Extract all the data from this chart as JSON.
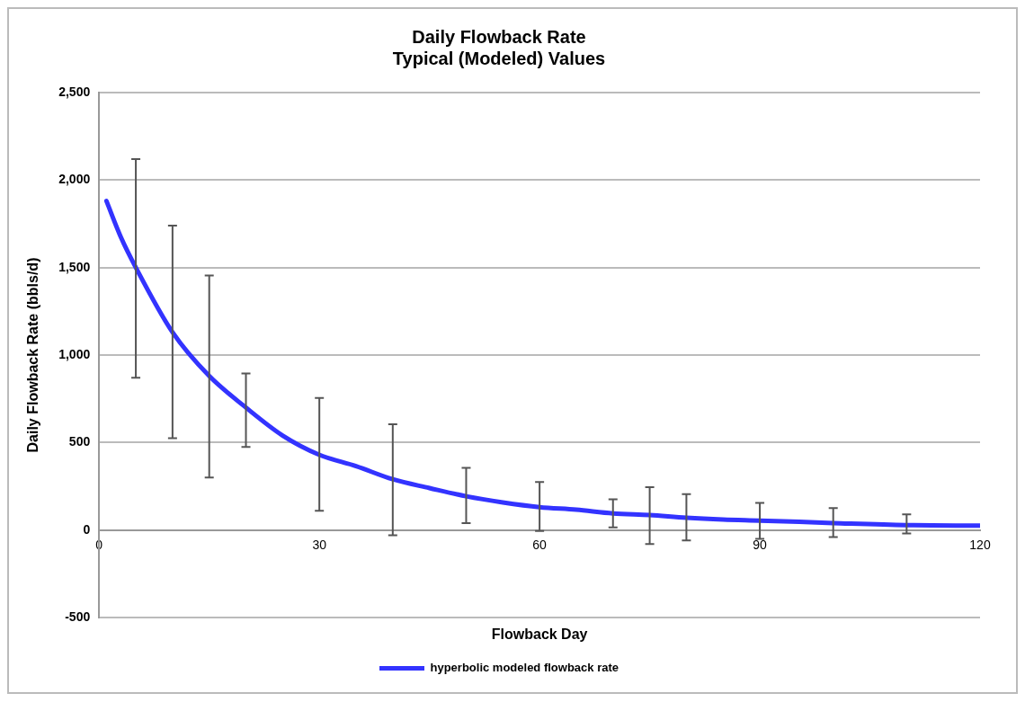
{
  "chart_data": {
    "type": "line",
    "title": "Daily Flowback Rate\nTypical (Modeled) Values",
    "xlabel": "Flowback Day",
    "ylabel": "Daily Flowback Rate (bbls/d)",
    "xlim": [
      0,
      120
    ],
    "xticks": [
      0,
      30,
      60,
      90,
      120
    ],
    "ylim": [
      -500,
      2500
    ],
    "yticks": [
      {
        "value": -500,
        "label": "-500"
      },
      0,
      500,
      {
        "value": 1000,
        "label": "1,000"
      },
      {
        "value": 1500,
        "label": "1,500"
      },
      {
        "value": 2000,
        "label": "2,000"
      },
      {
        "value": 2500,
        "label": "2,500"
      }
    ],
    "grid": "y",
    "legend": "bottom",
    "marker": "none",
    "line_style": "solid",
    "series": [
      {
        "name": "hyperbolic modeled flowback rate",
        "color": "#3333ff",
        "x": [
          1,
          3,
          5,
          10,
          15,
          20,
          25,
          30,
          35,
          40,
          45,
          50,
          55,
          60,
          65,
          70,
          75,
          80,
          85,
          90,
          100,
          110,
          120
        ],
        "values": [
          1880,
          1670,
          1500,
          1130,
          880,
          700,
          540,
          430,
          365,
          290,
          240,
          193,
          158,
          131,
          116,
          95,
          85,
          70,
          60,
          54,
          40,
          28,
          25
        ],
        "errors": [
          null,
          null,
          [
            870,
            2120
          ],
          [
            525,
            1740
          ],
          [
            300,
            1455
          ],
          [
            475,
            895
          ],
          null,
          [
            110,
            755
          ],
          null,
          [
            -30,
            605
          ],
          null,
          [
            40,
            355
          ],
          null,
          [
            -5,
            275
          ],
          null,
          [
            15,
            175
          ],
          [
            -80,
            245
          ],
          [
            -60,
            205
          ],
          null,
          [
            -50,
            155
          ],
          [
            -40,
            125
          ],
          [
            -20,
            90
          ],
          null
        ]
      }
    ]
  }
}
